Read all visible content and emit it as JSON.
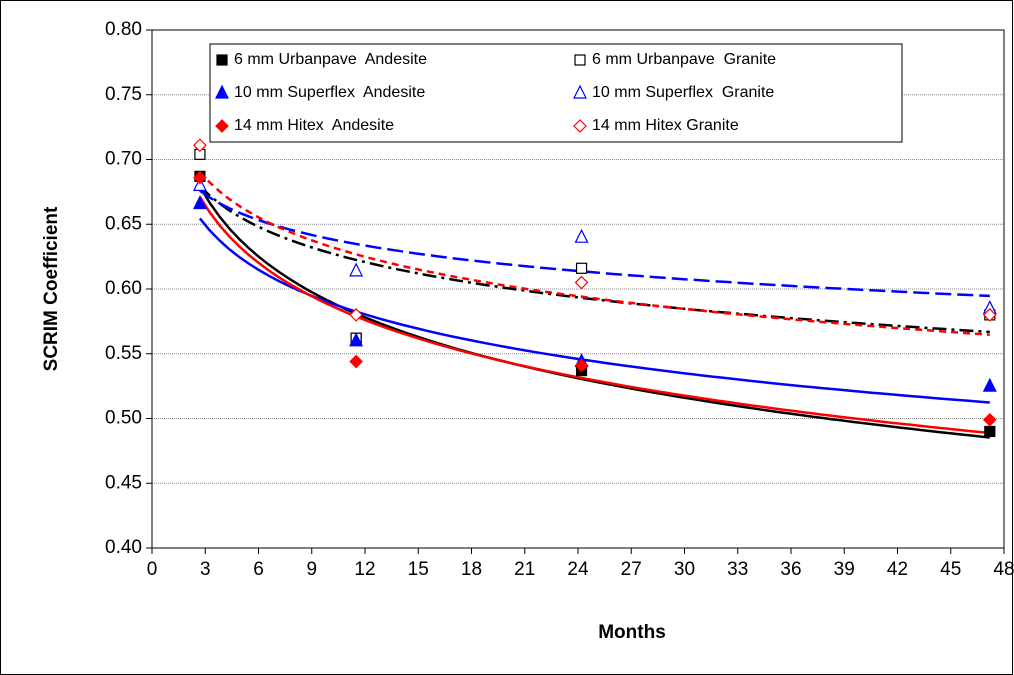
{
  "chart_data": {
    "type": "scatter",
    "x_label": "Months",
    "y_label": "SCRIM Coefficient",
    "x": [
      2.7,
      11.5,
      24.2,
      47.2
    ],
    "trendline": "logarithmic",
    "series": [
      {
        "name": "6 mm Urbanpave  Andesite",
        "color": "#000000",
        "marker": "square",
        "filled": true,
        "line_style": "solid",
        "values": [
          0.687,
          0.562,
          0.537,
          0.49
        ]
      },
      {
        "name": "6 mm Urbanpave  Granite",
        "color": "#000000",
        "marker": "square",
        "filled": false,
        "line_style": "dash-dot",
        "values": [
          0.704,
          0.562,
          0.616,
          0.58
        ]
      },
      {
        "name": "10 mm Superflex  Andesite",
        "color": "#0000ff",
        "marker": "triangle",
        "filled": true,
        "line_style": "solid",
        "values": [
          0.666,
          0.56,
          0.544,
          0.525
        ]
      },
      {
        "name": "10 mm Superflex  Granite",
        "color": "#0000ff",
        "marker": "triangle",
        "filled": false,
        "line_style": "long-dash",
        "values": [
          0.68,
          0.614,
          0.64,
          0.585
        ]
      },
      {
        "name": "14 mm Hitex  Andesite",
        "color": "#ff0000",
        "marker": "diamond",
        "filled": true,
        "line_style": "solid",
        "values": [
          0.686,
          0.544,
          0.541,
          0.499
        ]
      },
      {
        "name": "14 mm Hitex Granite",
        "color": "#ff0000",
        "marker": "diamond",
        "filled": false,
        "line_style": "dashed",
        "values": [
          0.711,
          0.58,
          0.605,
          0.58
        ]
      }
    ],
    "xlim": [
      0,
      48
    ],
    "xticks": [
      0,
      3,
      6,
      9,
      12,
      15,
      18,
      21,
      24,
      27,
      30,
      33,
      36,
      39,
      42,
      45,
      48
    ],
    "ylim": [
      0.4,
      0.8
    ],
    "yticks": [
      {
        "value": 0.4,
        "label": "0.40"
      },
      {
        "value": 0.45,
        "label": "0.45"
      },
      {
        "value": 0.5,
        "label": "0.50"
      },
      {
        "value": 0.55,
        "label": "0.55"
      },
      {
        "value": 0.6,
        "label": "0.60"
      },
      {
        "value": 0.65,
        "label": "0.65"
      },
      {
        "value": 0.7,
        "label": "0.70"
      },
      {
        "value": 0.75,
        "label": "0.75"
      },
      {
        "value": 0.8,
        "label": "0.80"
      }
    ],
    "grid": true,
    "legend": "top"
  }
}
